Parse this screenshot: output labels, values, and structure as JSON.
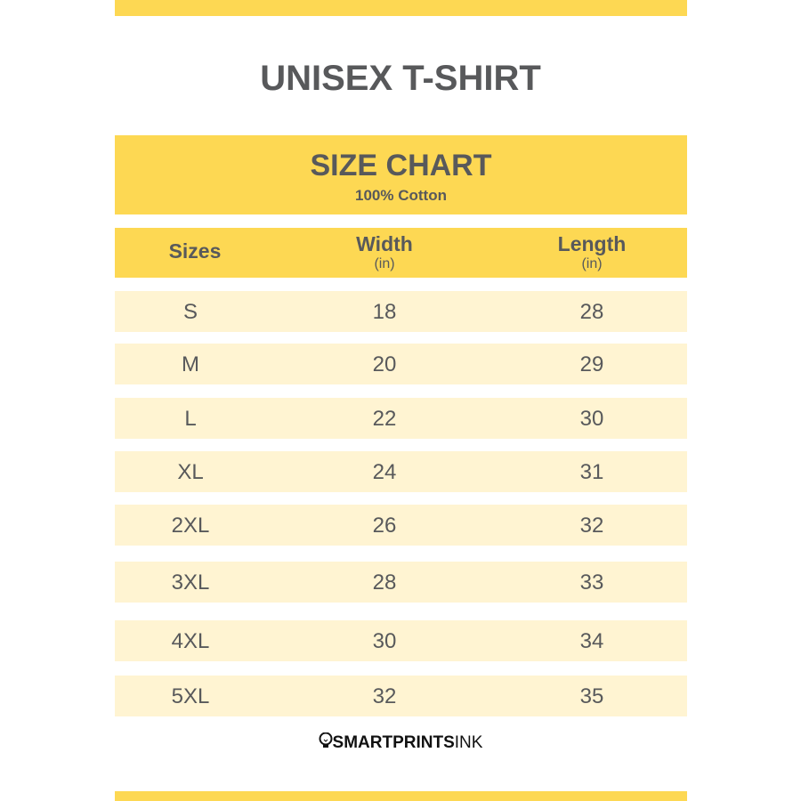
{
  "title": "UNISEX T-SHIRT",
  "chart_header": {
    "title": "SIZE CHART",
    "subtitle": "100% Cotton"
  },
  "columns": [
    {
      "label": "Sizes",
      "unit": ""
    },
    {
      "label": "Width",
      "unit": "(in)"
    },
    {
      "label": "Length",
      "unit": "(in)"
    }
  ],
  "rows": [
    [
      "S",
      "18",
      "28"
    ],
    [
      "M",
      "20",
      "29"
    ],
    [
      "L",
      "22",
      "30"
    ],
    [
      "XL",
      "24",
      "31"
    ],
    [
      "2XL",
      "26",
      "32"
    ],
    [
      "3XL",
      "28",
      "33"
    ],
    [
      "4XL",
      "30",
      "34"
    ],
    [
      "5XL",
      "32",
      "35"
    ]
  ],
  "brand": {
    "bold": "SMARTPRINTS",
    "light": "INK",
    "icon": "lightbulb-icon"
  },
  "colors": {
    "accent": "#fdd853",
    "row": "#fff4d2",
    "text": "#58595b"
  }
}
